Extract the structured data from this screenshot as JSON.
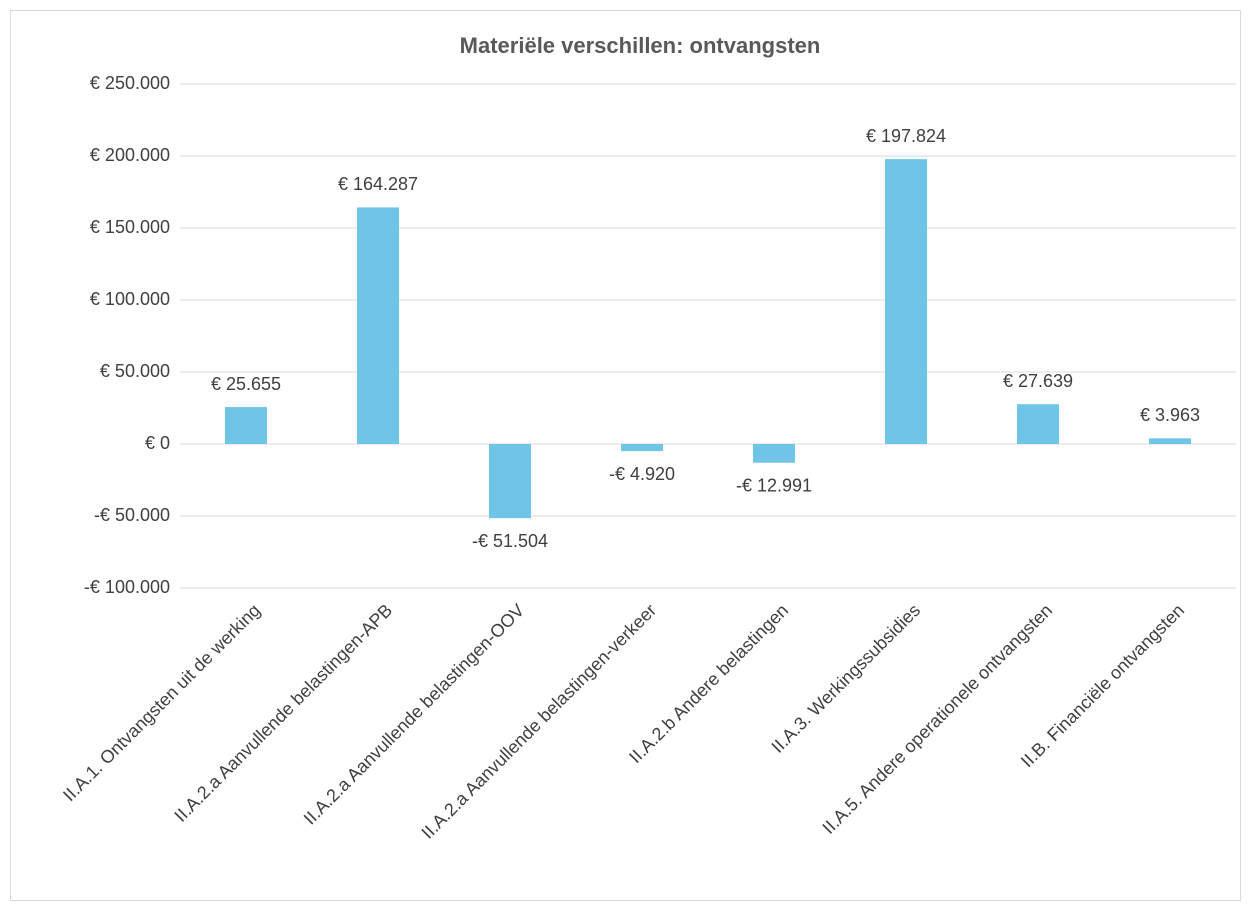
{
  "chart_data": {
    "type": "bar",
    "title": "Materiële verschillen: ontvangsten",
    "categories": [
      "II.A.1. Ontvangsten uit de werking",
      "II.A.2.a Aanvullende belastingen-APB",
      "II.A.2.a Aanvullende belastingen-OOV",
      "II.A.2.a Aanvullende belastingen-verkeer",
      "II.A.2.b Andere belastingen",
      "II.A.3. Werkingssubsidies",
      "II.A.5. Andere operationele ontvangsten",
      "II.B. Financiële ontvangsten"
    ],
    "values": [
      25655,
      164287,
      -51504,
      -4920,
      -12991,
      197824,
      27639,
      3963
    ],
    "value_labels": [
      "€ 25.655",
      "€ 164.287",
      "-€ 51.504",
      "-€ 4.920",
      "-€ 12.991",
      "€ 197.824",
      "€ 27.639",
      "€ 3.963"
    ],
    "color": "#70c4e8",
    "ylim": [
      -100000,
      250000
    ],
    "yticks": [
      {
        "value": -100000,
        "label": "-€ 100.000"
      },
      {
        "value": -50000,
        "label": "-€ 50.000"
      },
      {
        "value": 0,
        "label": "€ 0"
      },
      {
        "value": 50000,
        "label": "€ 50.000"
      },
      {
        "value": 100000,
        "label": "€ 100.000"
      },
      {
        "value": 150000,
        "label": "€ 150.000"
      },
      {
        "value": 200000,
        "label": "€ 200.000"
      },
      {
        "value": 250000,
        "label": "€ 250.000"
      }
    ],
    "grid": true
  }
}
